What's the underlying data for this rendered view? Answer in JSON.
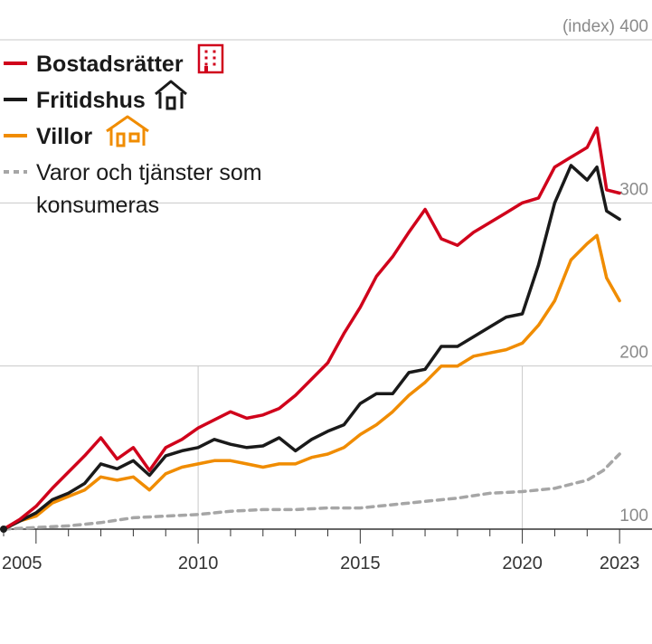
{
  "chart_data": {
    "type": "line",
    "title": "",
    "xlabel": "",
    "ylabel": "(index)",
    "xlim": [
      2004.0,
      2024.0
    ],
    "ylim": [
      100,
      400
    ],
    "y_ticks": [
      100,
      200,
      300,
      400
    ],
    "y_tick_labels": [
      "100",
      "200",
      "300",
      "(index) 400"
    ],
    "x_major_ticks": [
      2005,
      2010,
      2015,
      2020,
      2023
    ],
    "x_tick_labels": [
      "2005",
      "2010",
      "2015",
      "2020",
      "2023"
    ],
    "grid": "horizontal",
    "legend_position": "top-left",
    "series": [
      {
        "name": "Bostadsrätter",
        "color": "#d0021b",
        "style": "solid",
        "icon": "apartment-building-icon",
        "x": [
          2004.0,
          2004.5,
          2005.0,
          2005.5,
          2006.0,
          2006.5,
          2007.0,
          2007.5,
          2008.0,
          2008.5,
          2009.0,
          2009.5,
          2010.0,
          2010.5,
          2011.0,
          2011.5,
          2012.0,
          2012.5,
          2013.0,
          2013.5,
          2014.0,
          2014.5,
          2015.0,
          2015.5,
          2016.0,
          2016.5,
          2017.0,
          2017.5,
          2018.0,
          2018.5,
          2019.0,
          2019.5,
          2020.0,
          2020.5,
          2021.0,
          2021.5,
          2022.0,
          2022.3,
          2022.6,
          2023.0
        ],
        "values": [
          100,
          106,
          114,
          125,
          135,
          145,
          156,
          143,
          150,
          136,
          150,
          155,
          162,
          167,
          172,
          168,
          170,
          174,
          182,
          192,
          202,
          220,
          236,
          255,
          267,
          282,
          296,
          278,
          274,
          282,
          288,
          294,
          300,
          303,
          322,
          328,
          334,
          346,
          308,
          306
        ]
      },
      {
        "name": "Fritidshus",
        "color": "#1a1a1a",
        "style": "solid",
        "icon": "house-icon",
        "x": [
          2004.0,
          2004.5,
          2005.0,
          2005.5,
          2006.0,
          2006.5,
          2007.0,
          2007.5,
          2008.0,
          2008.5,
          2009.0,
          2009.5,
          2010.0,
          2010.5,
          2011.0,
          2011.5,
          2012.0,
          2012.5,
          2013.0,
          2013.5,
          2014.0,
          2014.5,
          2015.0,
          2015.5,
          2016.0,
          2016.5,
          2017.0,
          2017.5,
          2018.0,
          2018.5,
          2019.0,
          2019.5,
          2020.0,
          2020.5,
          2021.0,
          2021.5,
          2022.0,
          2022.3,
          2022.6,
          2023.0
        ],
        "values": [
          100,
          105,
          110,
          118,
          122,
          128,
          140,
          137,
          142,
          133,
          145,
          148,
          150,
          155,
          152,
          150,
          151,
          156,
          148,
          155,
          160,
          164,
          177,
          183,
          183,
          196,
          198,
          212,
          212,
          218,
          224,
          230,
          232,
          262,
          300,
          323,
          314,
          322,
          295,
          290
        ]
      },
      {
        "name": "Villor",
        "color": "#f08c00",
        "style": "solid",
        "icon": "villa-icon",
        "x": [
          2004.0,
          2004.5,
          2005.0,
          2005.5,
          2006.0,
          2006.5,
          2007.0,
          2007.5,
          2008.0,
          2008.5,
          2009.0,
          2009.5,
          2010.0,
          2010.5,
          2011.0,
          2011.5,
          2012.0,
          2012.5,
          2013.0,
          2013.5,
          2014.0,
          2014.5,
          2015.0,
          2015.5,
          2016.0,
          2016.5,
          2017.0,
          2017.5,
          2018.0,
          2018.5,
          2019.0,
          2019.5,
          2020.0,
          2020.5,
          2021.0,
          2021.5,
          2022.0,
          2022.3,
          2022.6,
          2023.0
        ],
        "values": [
          100,
          105,
          108,
          116,
          120,
          124,
          132,
          130,
          132,
          124,
          134,
          138,
          140,
          142,
          142,
          140,
          138,
          140,
          140,
          144,
          146,
          150,
          158,
          164,
          172,
          182,
          190,
          200,
          200,
          206,
          208,
          210,
          214,
          225,
          240,
          265,
          275,
          280,
          254,
          240
        ]
      },
      {
        "name": "Varor och tjänster som konsumeras",
        "color": "#a6a6a6",
        "style": "dashed",
        "icon": "",
        "x": [
          2004.0,
          2005.0,
          2006.0,
          2007.0,
          2008.0,
          2009.0,
          2010.0,
          2011.0,
          2012.0,
          2013.0,
          2014.0,
          2015.0,
          2016.0,
          2017.0,
          2018.0,
          2019.0,
          2020.0,
          2021.0,
          2022.0,
          2022.5,
          2023.0
        ],
        "values": [
          100,
          101,
          102,
          104,
          107,
          108,
          109,
          111,
          112,
          112,
          113,
          113,
          115,
          117,
          119,
          122,
          123,
          125,
          130,
          136,
          146
        ]
      }
    ]
  }
}
